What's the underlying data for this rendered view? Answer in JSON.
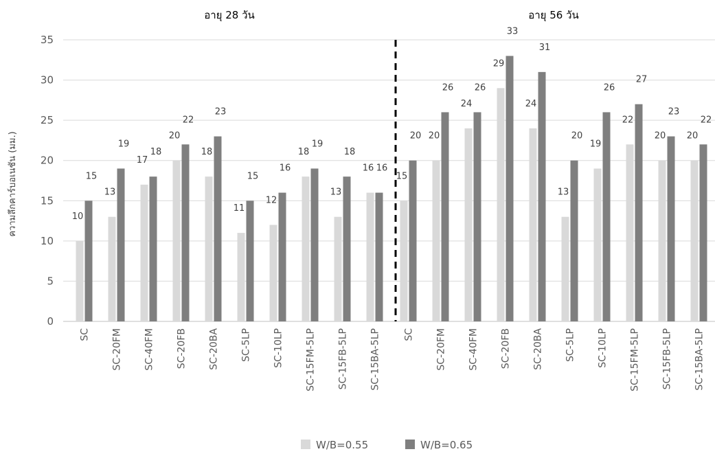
{
  "chart_data": {
    "type": "bar",
    "ylabel": "ความลึกคาร์บอเนชัน (มม.)",
    "ylim": [
      0,
      35
    ],
    "yticks": [
      0,
      5,
      10,
      15,
      20,
      25,
      30,
      35
    ],
    "grid": true,
    "legend_position": "bottom",
    "groups": [
      {
        "title": "อายุ 28 วัน",
        "categories": [
          "SC",
          "SC-20FM",
          "SC-40FM",
          "SC-20FB",
          "SC-20BA",
          "SC-5LP",
          "SC-10LP",
          "SC-15FM-5LP",
          "SC-15FB-5LP",
          "SC-15BA-5LP"
        ],
        "series": [
          {
            "name": "W/B=0.55",
            "values": [
              10,
              13,
              17,
              20,
              18,
              11,
              12,
              18,
              13,
              16
            ]
          },
          {
            "name": "W/B=0.65",
            "values": [
              15,
              19,
              18,
              22,
              23,
              15,
              16,
              19,
              18,
              16
            ]
          }
        ]
      },
      {
        "title": "อายุ 56 วัน",
        "categories": [
          "SC",
          "SC-20FM",
          "SC-40FM",
          "SC-20FB",
          "SC-20BA",
          "SC-5LP",
          "SC-10LP",
          "SC-15FM-5LP",
          "SC-15FB-5LP",
          "SC-15BA-5LP"
        ],
        "series": [
          {
            "name": "W/B=0.55",
            "values": [
              15,
              20,
              24,
              29,
              24,
              13,
              19,
              22,
              20,
              20
            ]
          },
          {
            "name": "W/B=0.65",
            "values": [
              20,
              26,
              26,
              33,
              31,
              20,
              26,
              27,
              23,
              22
            ]
          }
        ]
      }
    ],
    "legend": [
      {
        "name": "W/B=0.55",
        "color": "#d9d9d9"
      },
      {
        "name": "W/B=0.65",
        "color": "#7f7f7f"
      }
    ],
    "colors": {
      "series_055": "#d9d9d9",
      "series_065": "#7f7f7f",
      "grid": "#d9d9d9",
      "divider": "#000000"
    }
  }
}
